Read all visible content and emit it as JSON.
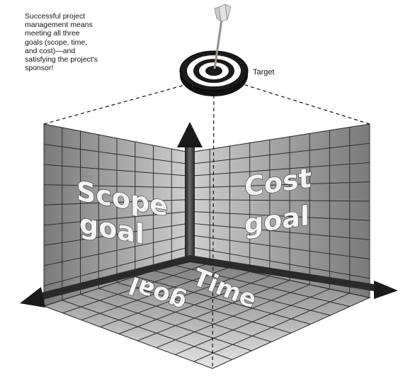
{
  "caption": "Successful project\nmanagement means\nmeeting all three\ngoals (scope, time,\nand cost)—and\nsatisfying the project's\nsponsor!",
  "target_label": "Target",
  "goals": {
    "scope": {
      "line1": "Scope",
      "line2": "goal"
    },
    "cost": {
      "line1": "Cost",
      "line2": "goal"
    },
    "time": {
      "line1": "Time",
      "line2": "goal"
    }
  },
  "icons": [
    "target-bullseye-icon",
    "dart-arrow-icon",
    "axis-arrow-icon"
  ]
}
